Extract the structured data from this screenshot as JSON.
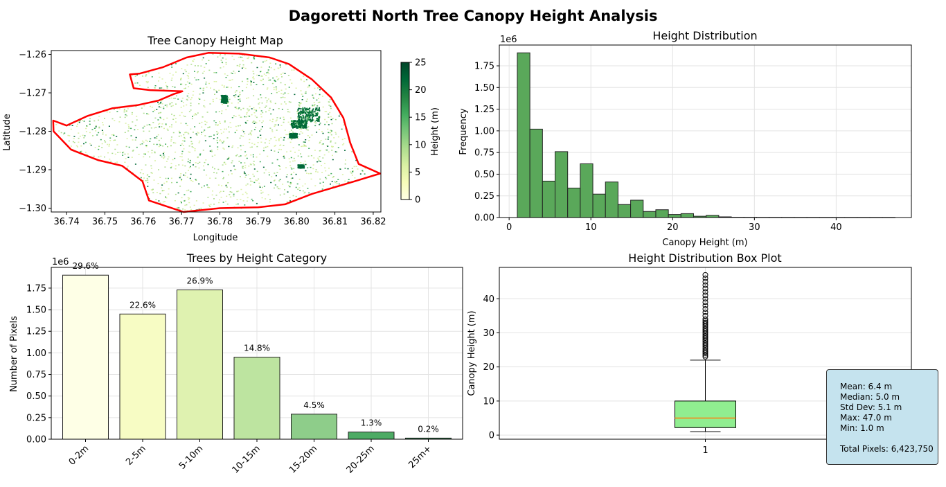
{
  "figure_title": "Dagoretti North Tree Canopy Height Analysis",
  "colors": {
    "boundary": "#ff0000",
    "hist_fill": "#5aa85a",
    "box_fill": "#90ee90",
    "median_line": "#ff7f0e",
    "stats_bg": "#c5e3ee",
    "category_colors": [
      "#feffe6",
      "#f7fcc4",
      "#dff2b0",
      "#bde4a0",
      "#8ecd8a",
      "#4dab64",
      "#1f7f45"
    ]
  },
  "chart_data": [
    {
      "type": "heatmap",
      "title": "Tree Canopy Height Map",
      "xlabel": "Longitude",
      "ylabel": "Latitude",
      "xlim": [
        36.736,
        36.822
      ],
      "ylim": [
        -1.301,
        -1.259
      ],
      "xticks": [
        "36.74",
        "36.75",
        "36.76",
        "36.77",
        "36.78",
        "36.79",
        "36.80",
        "36.81",
        "36.82"
      ],
      "yticks": [
        "-1.26",
        "-1.27",
        "-1.28",
        "-1.29",
        "-1.30"
      ],
      "colorbar": {
        "label": "Height (m)",
        "range": [
          0,
          25
        ],
        "ticks": [
          "0",
          "5",
          "10",
          "15",
          "20",
          "25"
        ],
        "colormap": "YlGn"
      },
      "grid": false
    },
    {
      "type": "bar",
      "title": "Height Distribution",
      "xlabel": "Canopy Height (m)",
      "ylabel": "Frequency",
      "scale_label": "1e6",
      "xlim": [
        -1.2,
        49.2
      ],
      "ylim": [
        0,
        1.99
      ],
      "xticks": [
        "0",
        "10",
        "20",
        "30",
        "40"
      ],
      "yticks": [
        "0.00",
        "0.25",
        "0.50",
        "0.75",
        "1.00",
        "1.25",
        "1.50",
        "1.75"
      ],
      "bin_edges": [
        1.0,
        2.54,
        4.08,
        5.62,
        7.16,
        8.7,
        10.24,
        11.78,
        13.32,
        14.86,
        16.4,
        17.94,
        19.48,
        21.02,
        22.56,
        24.1,
        25.64,
        27.18,
        28.72,
        30.26,
        31.8,
        33.34,
        34.88,
        36.42,
        37.96,
        39.5,
        41.04,
        42.58,
        44.12,
        45.66,
        47.2
      ],
      "values": [
        1.9,
        1.02,
        0.42,
        0.76,
        0.34,
        0.62,
        0.27,
        0.41,
        0.15,
        0.2,
        0.07,
        0.09,
        0.035,
        0.045,
        0.015,
        0.025,
        0.008,
        0.003,
        0.002,
        0.001,
        0.001,
        0.0005,
        0.0004,
        0.0003,
        0.0002,
        0.0002,
        0.0001,
        0.0001,
        0.0001,
        0.0001
      ],
      "grid": true
    },
    {
      "type": "bar",
      "title": "Trees by Height Category",
      "xlabel": "",
      "ylabel": "Number of Pixels",
      "scale_label": "1e6",
      "ylim": [
        0,
        1.99
      ],
      "yticks": [
        "0.00",
        "0.25",
        "0.50",
        "0.75",
        "1.00",
        "1.25",
        "1.50",
        "1.75"
      ],
      "categories": [
        "0-2m",
        "2-5m",
        "5-10m",
        "10-15m",
        "15-20m",
        "20-25m",
        "25m+"
      ],
      "values": [
        1.9,
        1.45,
        1.73,
        0.95,
        0.29,
        0.083,
        0.013
      ],
      "labels": [
        "29.6%",
        "22.6%",
        "26.9%",
        "14.8%",
        "4.5%",
        "1.3%",
        "0.2%"
      ],
      "grid": true
    },
    {
      "type": "box",
      "title": "Height Distribution Box Plot",
      "ylabel": "Canopy Height (m)",
      "xticks": [
        "1"
      ],
      "ylim": [
        -1.2,
        49.2
      ],
      "yticks": [
        "0",
        "10",
        "20",
        "30",
        "40"
      ],
      "box": {
        "min": 1.0,
        "q1": 2.2,
        "median": 5.0,
        "q3": 10.0,
        "whisker_low": 1.0,
        "whisker_high": 22.0,
        "max": 47.0
      },
      "fliers": [
        23,
        23.5,
        24,
        24.5,
        25,
        25.5,
        26,
        26.5,
        27,
        27.5,
        28,
        28.5,
        29,
        29.5,
        30,
        30.5,
        31,
        31.5,
        32,
        32.5,
        33,
        33.5,
        34,
        35,
        36,
        37,
        38,
        39,
        40,
        41,
        42,
        43,
        44,
        45,
        46,
        47
      ],
      "grid": true
    }
  ],
  "stats_box": {
    "lines": [
      "Mean: 6.4 m",
      "Median: 5.0 m",
      "Std Dev: 5.1 m",
      "Max: 47.0 m",
      "Min: 1.0 m"
    ],
    "total": "Total Pixels: 6,423,750"
  }
}
